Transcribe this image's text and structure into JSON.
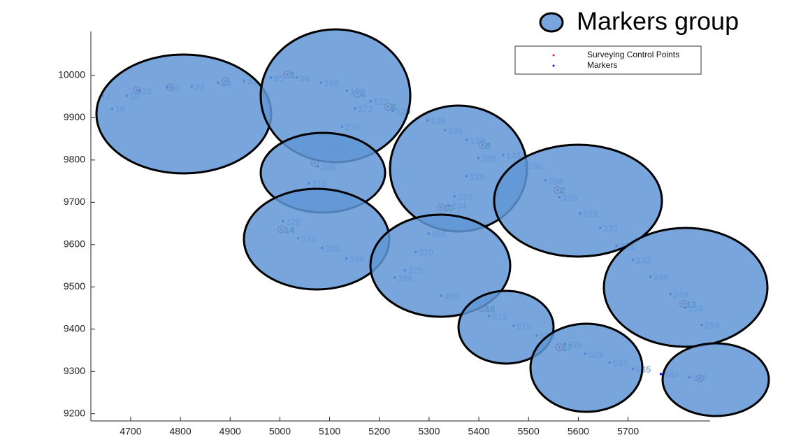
{
  "legend_title": "Markers group",
  "chart_data": {
    "type": "scatter",
    "xlim": [
      4620,
      5865
    ],
    "ylim": [
      9183,
      10104
    ],
    "xticks": [
      4700,
      4800,
      4900,
      5000,
      5100,
      5200,
      5300,
      5400,
      5500,
      5600,
      5700
    ],
    "yticks": [
      9200,
      9300,
      9400,
      9500,
      9600,
      9700,
      9800,
      9900,
      10000
    ],
    "legend": "northeast",
    "series": [
      {
        "name": "Surveying Control Points",
        "color": "#e8202a",
        "label_color": "#1e8a52",
        "x": [
          4713,
          4780,
          4890,
          5015,
          5156,
          5218,
          5408,
          5070,
          5323,
          5003,
          5558,
          5811,
          5562,
          5407,
          5844
        ],
        "values": [
          9965,
          9972,
          9987,
          10002,
          9957,
          9926,
          9835,
          9793,
          9688,
          9636,
          9729,
          9460,
          9357,
          9450,
          9284
        ],
        "labels": [
          null,
          null,
          null,
          "1",
          "4",
          "6",
          "8",
          null,
          "10",
          "14",
          "2",
          "12",
          "17",
          "16",
          null
        ]
      },
      {
        "name": "Markers",
        "color": "#1515e0",
        "label_color": "#8fb1e0",
        "x": [
          4644,
          4663,
          4692,
          4717,
          4773,
          4823,
          4876,
          4928,
          4982,
          5034,
          5083,
          5135,
          5151,
          5182,
          5227,
          5125,
          5101,
          5076,
          5058,
          5027,
          5006,
          5037,
          5085,
          5134,
          5297,
          5332,
          5376,
          5399,
          5449,
          5493,
          5375,
          5351,
          5339,
          5299,
          5273,
          5252,
          5231,
          5324,
          5421,
          5470,
          5517,
          5573,
          5614,
          5663,
          5710,
          5766,
          5823,
          5534,
          5562,
          5604,
          5644,
          5677,
          5710,
          5745,
          5785,
          5815,
          5848
        ],
        "values": [
          9952,
          9921,
          9952,
          9964,
          9972,
          9974,
          9983,
          9987,
          9995,
          9995,
          9983,
          9964,
          9922,
          9939,
          9917,
          9879,
          9833,
          9785,
          9745,
          9702,
          9655,
          9615,
          9592,
          9567,
          9894,
          9871,
          9848,
          9805,
          9812,
          9787,
          9762,
          9714,
          9693,
          9626,
          9583,
          9539,
          9522,
          9479,
          9431,
          9408,
          9385,
          9365,
          9342,
          9321,
          9306,
          9294,
          9286,
          9752,
          9712,
          9674,
          9640,
          9597,
          9564,
          9524,
          9483,
          9451,
          9410
        ],
        "labels": [
          "3",
          "10",
          "18",
          "32",
          "20",
          "23",
          "28",
          "33",
          "95",
          "98",
          "100",
          "108",
          "272",
          "123",
          "126",
          "276",
          "289",
          "305",
          "310",
          "315",
          "320",
          "376",
          "383",
          "386",
          "129",
          "136",
          "138",
          "325",
          "146",
          "150",
          "329",
          "333",
          "334",
          "368",
          "370",
          "375",
          "396",
          "400",
          "513",
          "515",
          "523",
          "526",
          "529",
          "533",
          "535",
          "540",
          "545",
          "208",
          "226",
          "228",
          "233",
          "238",
          "242",
          "246",
          "249",
          "253",
          "258"
        ]
      }
    ]
  }
}
